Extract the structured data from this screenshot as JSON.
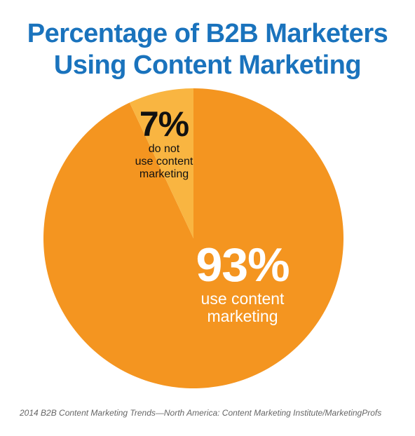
{
  "chart_data": {
    "type": "pie",
    "title_line1": "Percentage of B2B Marketers",
    "title_line2": "Using Content Marketing",
    "slices": [
      {
        "label": "use content marketing",
        "value": 93,
        "value_label": "93%",
        "desc_line1": "use content",
        "desc_line2": "marketing",
        "color": "#f49520"
      },
      {
        "label": "do not use content marketing",
        "value": 7,
        "value_label": "7%",
        "desc_line1": "do not",
        "desc_line2": "use content",
        "desc_line3": "marketing",
        "color": "#f9b541"
      }
    ],
    "source": "2014 B2B Content Marketing Trends—North America: Content Marketing Institute/MarketingProfs"
  }
}
